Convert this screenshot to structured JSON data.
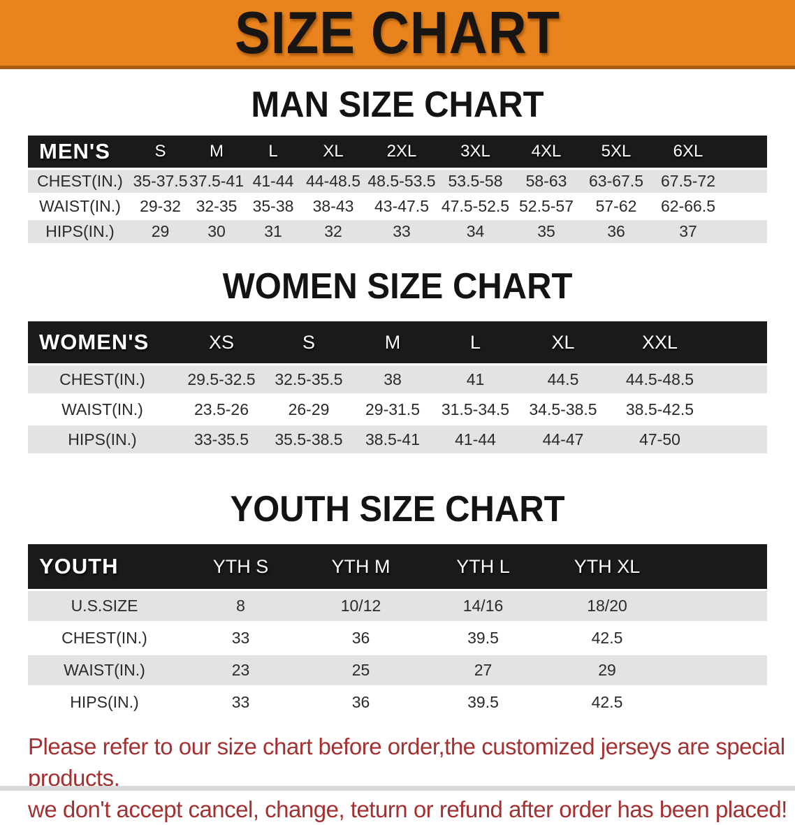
{
  "banner": {
    "title": "SIZE CHART",
    "bg_color": "#E8831D",
    "border_color": "#A95B11"
  },
  "sections": [
    {
      "heading": "MAN SIZE CHART",
      "table": {
        "label": "MEN'S",
        "columns": [
          "S",
          "M",
          "L",
          "XL",
          "2XL",
          "3XL",
          "4XL",
          "5XL",
          "6XL"
        ],
        "rows": [
          {
            "label": "CHEST(IN.)",
            "values": [
              "35-37.5",
              "37.5-41",
              "41-44",
              "44-48.5",
              "48.5-53.5",
              "53.5-58",
              "58-63",
              "63-67.5",
              "67.5-72"
            ]
          },
          {
            "label": "WAIST(IN.)",
            "values": [
              "29-32",
              "32-35",
              "35-38",
              "38-43",
              "43-47.5",
              "47.5-52.5",
              "52.5-57",
              "57-62",
              "62-66.5"
            ]
          },
          {
            "label": "HIPS(IN.)",
            "values": [
              "29",
              "30",
              "31",
              "32",
              "33",
              "34",
              "35",
              "36",
              "37"
            ]
          }
        ]
      }
    },
    {
      "heading": "WOMEN SIZE CHART",
      "table": {
        "label": "WOMEN'S",
        "columns": [
          "XS",
          "S",
          "M",
          "L",
          "XL",
          "XXL"
        ],
        "rows": [
          {
            "label": "CHEST(IN.)",
            "values": [
              "29.5-32.5",
              "32.5-35.5",
              "38",
              "41",
              "44.5",
              "44.5-48.5"
            ]
          },
          {
            "label": "WAIST(IN.)",
            "values": [
              "23.5-26",
              "26-29",
              "29-31.5",
              "31.5-34.5",
              "34.5-38.5",
              "38.5-42.5"
            ]
          },
          {
            "label": "HIPS(IN.)",
            "values": [
              "33-35.5",
              "35.5-38.5",
              "38.5-41",
              "41-44",
              "44-47",
              "47-50"
            ]
          }
        ]
      }
    },
    {
      "heading": "YOUTH SIZE CHART",
      "table": {
        "label": "YOUTH",
        "columns": [
          "YTH S",
          "YTH M",
          "YTH L",
          "YTH XL"
        ],
        "rows": [
          {
            "label": "U.S.SIZE",
            "values": [
              "8",
              "10/12",
              "14/16",
              "18/20"
            ]
          },
          {
            "label": "CHEST(IN.)",
            "values": [
              "33",
              "36",
              "39.5",
              "42.5"
            ]
          },
          {
            "label": "WAIST(IN.)",
            "values": [
              "23",
              "25",
              "27",
              "29"
            ]
          },
          {
            "label": "HIPS(IN.)",
            "values": [
              "33",
              "36",
              "39.5",
              "42.5"
            ]
          }
        ]
      }
    }
  ],
  "footer": {
    "line1": "Please refer to our size chart before order,the customized jerseys are special products,",
    "line2": "we don't accept cancel, change, teturn or refund after order has been placed!",
    "color": "#A43131"
  }
}
